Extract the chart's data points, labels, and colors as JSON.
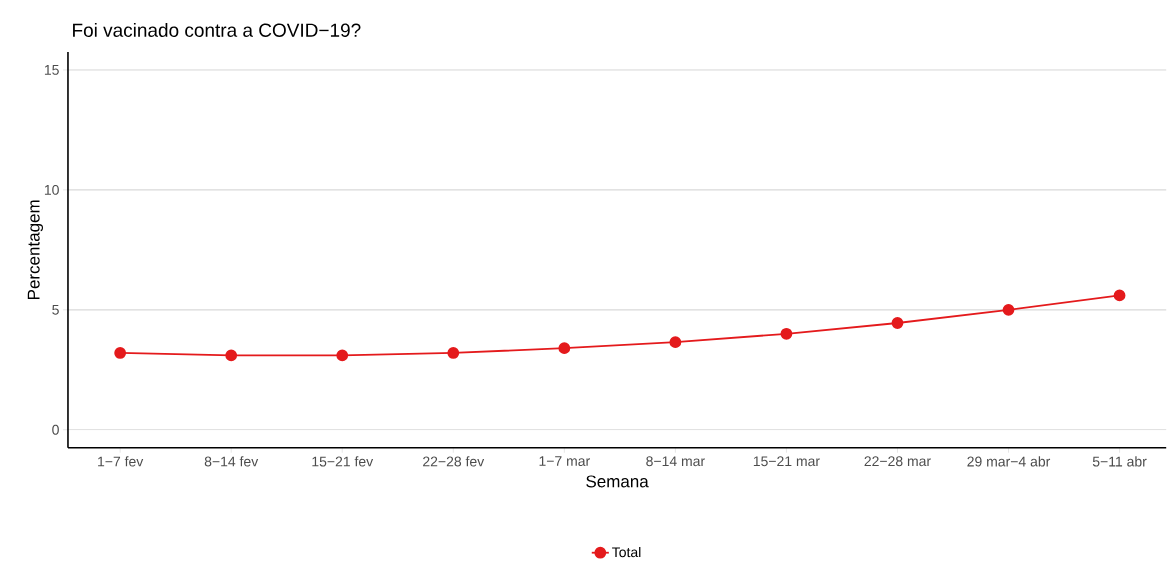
{
  "chart_data": {
    "type": "line",
    "title": "Foi vacinado contra a COVID−19?",
    "xlabel": "Semana",
    "ylabel": "Percentagem",
    "categories": [
      "1−7 fev",
      "8−14 fev",
      "15−21 fev",
      "22−28 fev",
      "1−7 mar",
      "8−14 mar",
      "15−21 mar",
      "22−28 mar",
      "29 mar−4 abr",
      "5−11 abr"
    ],
    "series": [
      {
        "name": "Total",
        "color": "#e41a1c",
        "values": [
          3.2,
          3.1,
          3.1,
          3.2,
          3.4,
          3.65,
          4.0,
          4.45,
          5.0,
          5.6
        ]
      }
    ],
    "ylim": [
      -0.75,
      15.75
    ],
    "yticks": [
      0,
      5,
      10,
      15
    ],
    "grid": "y",
    "legend": "bottom",
    "marker": "circle",
    "line_style": "solid"
  }
}
